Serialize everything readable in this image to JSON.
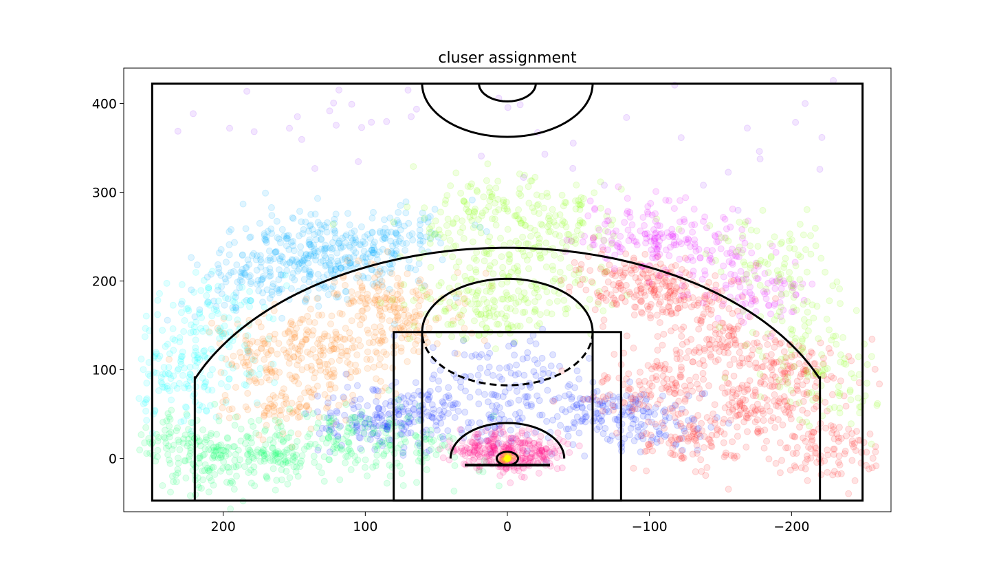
{
  "chart_data": {
    "type": "scatter",
    "title": "cluser assignment",
    "xlabel": "",
    "ylabel": "",
    "xlim": [
      270,
      -270
    ],
    "ylim": [
      -60,
      440
    ],
    "x_ticks": [
      200,
      100,
      0,
      -100,
      -200
    ],
    "x_tick_labels": [
      "200",
      "100",
      "0",
      "−100",
      "−200"
    ],
    "y_ticks": [
      0,
      100,
      200,
      300,
      400
    ],
    "y_tick_labels": [
      "0",
      "100",
      "200",
      "300",
      "400"
    ],
    "grid": false,
    "legend": "none",
    "point_alpha": 0.12,
    "court": {
      "outer_lines": {
        "x": [
          -250,
          250
        ],
        "y": [
          -47.5,
          422.5
        ]
      },
      "outer_box": {
        "x": [
          -80,
          80
        ],
        "y": [
          -47.5,
          142.5
        ]
      },
      "inner_box": {
        "x": [
          -60,
          60
        ],
        "y": [
          -47.5,
          142.5
        ]
      },
      "free_throw_circle_radius": 60,
      "free_throw_circle_center": [
        0,
        142.5
      ],
      "three_point_corner_x": 220,
      "three_point_corner_top_y": 92.5,
      "three_point_radius": 237.5,
      "restricted_area_radius": 40,
      "hoop_radius": 7.5,
      "backboard": {
        "x": [
          -30,
          30
        ],
        "y": -7.5
      },
      "center_court_outer_radius": 60,
      "center_court_inner_radius": 20,
      "center_court_center": [
        0,
        422.5
      ]
    },
    "series": [
      {
        "cluster": 0,
        "color": "#00aaff",
        "region": "left wing above the arc",
        "approx_count": 1400,
        "center": [
          130,
          220
        ],
        "points_sampled": [
          [
            190,
            190
          ],
          [
            160,
            205
          ],
          [
            130,
            225
          ],
          [
            100,
            240
          ],
          [
            70,
            255
          ],
          [
            140,
            250
          ],
          [
            170,
            230
          ],
          [
            110,
            215
          ]
        ]
      },
      {
        "cluster": 1,
        "color": "#ff7f0e",
        "region": "left mid-range",
        "approx_count": 1500,
        "center": [
          130,
          140
        ],
        "points_sampled": [
          [
            160,
            100
          ],
          [
            130,
            140
          ],
          [
            100,
            170
          ],
          [
            80,
            190
          ],
          [
            150,
            60
          ],
          [
            110,
            110
          ],
          [
            170,
            130
          ],
          [
            70,
            150
          ]
        ]
      },
      {
        "cluster": 2,
        "color": "#80ff00",
        "region": "top of the key",
        "approx_count": 1300,
        "center": [
          0,
          220
        ],
        "points_sampled": [
          [
            0,
            160
          ],
          [
            20,
            200
          ],
          [
            -20,
            240
          ],
          [
            40,
            260
          ],
          [
            -40,
            270
          ],
          [
            0,
            290
          ],
          [
            30,
            170
          ],
          [
            -30,
            190
          ]
        ]
      },
      {
        "cluster": 3,
        "color": "#0022ff",
        "region": "paint / short mid-range",
        "approx_count": 1600,
        "center": [
          0,
          70
        ],
        "points_sampled": [
          [
            0,
            40
          ],
          [
            50,
            60
          ],
          [
            -50,
            60
          ],
          [
            80,
            50
          ],
          [
            -80,
            50
          ],
          [
            0,
            100
          ],
          [
            100,
            40
          ],
          [
            -100,
            40
          ]
        ]
      },
      {
        "cluster": 4,
        "color": "#ff0080",
        "region": "restricted area",
        "approx_count": 900,
        "center": [
          0,
          5
        ],
        "points_sampled": [
          [
            0,
            0
          ],
          [
            15,
            10
          ],
          [
            -15,
            10
          ],
          [
            25,
            5
          ],
          [
            -25,
            5
          ],
          [
            5,
            20
          ],
          [
            -5,
            -5
          ]
        ]
      },
      {
        "cluster": 5,
        "color": "#ffff00",
        "region": "at the rim",
        "approx_count": 60,
        "center": [
          0,
          0
        ],
        "points_sampled": [
          [
            0,
            0
          ]
        ]
      },
      {
        "cluster": 6,
        "color": "#00ff66",
        "region": "left baseline",
        "approx_count": 1400,
        "center": [
          150,
          15
        ],
        "points_sampled": [
          [
            150,
            10
          ],
          [
            180,
            0
          ],
          [
            120,
            20
          ],
          [
            90,
            30
          ],
          [
            210,
            10
          ],
          [
            240,
            20
          ],
          [
            60,
            10
          ],
          [
            200,
            -10
          ]
        ]
      },
      {
        "cluster": 7,
        "color": "#00ffff",
        "region": "left corner / wing three",
        "approx_count": 700,
        "center": [
          215,
          130
        ],
        "points_sampled": [
          [
            220,
            80
          ],
          [
            230,
            120
          ],
          [
            205,
            150
          ],
          [
            200,
            180
          ],
          [
            215,
            100
          ],
          [
            235,
            60
          ]
        ]
      },
      {
        "cluster": 8,
        "color": "#ff1a1a",
        "region": "right mid-range and baseline",
        "approx_count": 2600,
        "center": [
          -130,
          100
        ],
        "points_sampled": [
          [
            -120,
            180
          ],
          [
            -150,
            130
          ],
          [
            -100,
            80
          ],
          [
            -180,
            60
          ],
          [
            -130,
            20
          ],
          [
            -200,
            100
          ],
          [
            -90,
            200
          ],
          [
            -230,
            10
          ]
        ]
      },
      {
        "cluster": 9,
        "color": "#e600ff",
        "region": "right wing above the arc",
        "approx_count": 800,
        "center": [
          -130,
          220
        ],
        "points_sampled": [
          [
            -80,
            260
          ],
          [
            -110,
            240
          ],
          [
            -140,
            225
          ],
          [
            -170,
            200
          ],
          [
            -185,
            185
          ],
          [
            -120,
            255
          ]
        ]
      },
      {
        "cluster": 10,
        "color": "#80ff00",
        "region": "right corner / wing three",
        "approx_count": 600,
        "center": [
          -200,
          150
        ],
        "points_sampled": [
          [
            -190,
            220
          ],
          [
            -200,
            170
          ],
          [
            -215,
            130
          ],
          [
            -220,
            100
          ],
          [
            -230,
            60
          ],
          [
            -170,
            240
          ]
        ]
      },
      {
        "cluster": 11,
        "color": "#9933ff",
        "region": "deep shots / heaves",
        "approx_count": 130,
        "center": [
          0,
          370
        ],
        "points_sampled": [
          [
            190,
            390
          ],
          [
            150,
            370
          ],
          [
            100,
            400
          ],
          [
            20,
            380
          ],
          [
            -40,
            360
          ],
          [
            -110,
            370
          ],
          [
            -170,
            330
          ],
          [
            -200,
            380
          ]
        ]
      }
    ]
  }
}
